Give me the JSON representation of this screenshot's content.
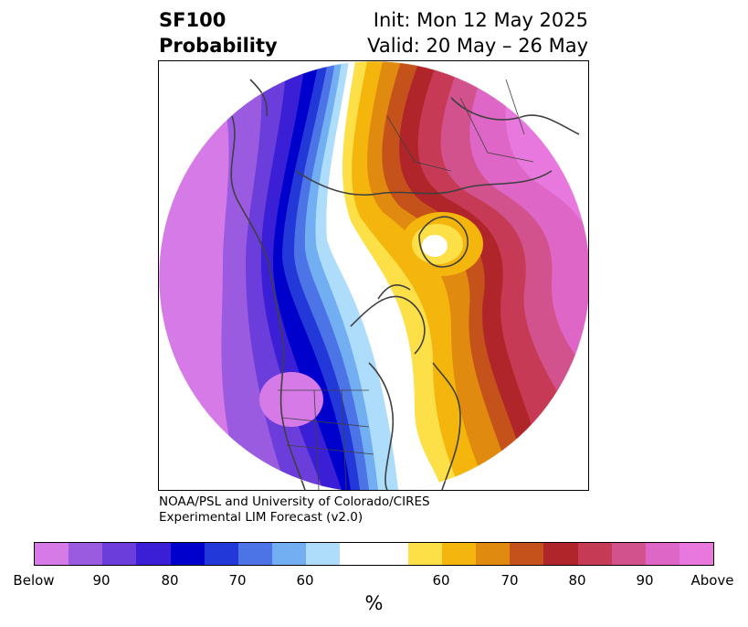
{
  "header": {
    "title_line1": "SF100",
    "title_line2": "Probability",
    "init": "Init: Mon 12 May 2025",
    "valid": "Valid: 20 May – 26 May"
  },
  "credit": {
    "line1": "NOAA/PSL and University of Colorado/CIRES",
    "line2": "Experimental LIM Forecast (v2.0)"
  },
  "colorbar": {
    "colors": [
      "#d67ae8",
      "#9b5be0",
      "#6b3ddb",
      "#3b1fd6",
      "#0000cc",
      "#2238d8",
      "#4c74e6",
      "#72aef2",
      "#aedcfb",
      "#ffffff",
      "#ffffff",
      "#fde047",
      "#f4b60c",
      "#e08a0f",
      "#c4521a",
      "#b0252a",
      "#c63a55",
      "#d2528e",
      "#de66c6",
      "#e878de"
    ],
    "tick_labels": [
      "Below",
      "90",
      "80",
      "70",
      "60",
      "60",
      "70",
      "80",
      "90",
      "Above"
    ],
    "unit": "%"
  },
  "map": {
    "projection": "north-polar-stereographic",
    "fill_below": "#d67ae8",
    "fill_above": "#e878de",
    "coastline_color": "#404040"
  }
}
